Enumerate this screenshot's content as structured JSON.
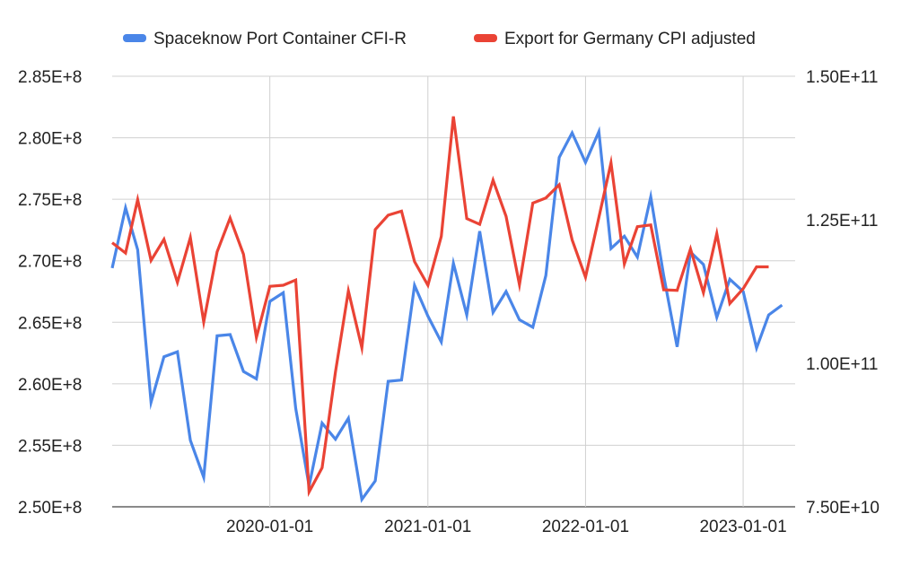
{
  "chart_data": {
    "type": "line",
    "title": "",
    "xlabel": "",
    "ylabel_left": "",
    "ylabel_right": "",
    "x_tick_labels": [
      "2020-01-01",
      "2021-01-01",
      "2022-01-01",
      "2023-01-01"
    ],
    "x_tick_dates": [
      "2020-01-01",
      "2021-01-01",
      "2022-01-01",
      "2023-01-01"
    ],
    "x_range": [
      "2019-01-01",
      "2023-02-01"
    ],
    "ylim_left": [
      250000000,
      285000000
    ],
    "ylim_right": [
      75000000000,
      150000000000
    ],
    "y_left_ticks": [
      {
        "value": 250000000,
        "label": "2.50E+8"
      },
      {
        "value": 255000000,
        "label": "2.55E+8"
      },
      {
        "value": 260000000,
        "label": "2.60E+8"
      },
      {
        "value": 265000000,
        "label": "2.65E+8"
      },
      {
        "value": 270000000,
        "label": "2.70E+8"
      },
      {
        "value": 275000000,
        "label": "2.75E+8"
      },
      {
        "value": 280000000,
        "label": "2.80E+8"
      },
      {
        "value": 285000000,
        "label": "2.85E+8"
      }
    ],
    "y_right_ticks": [
      {
        "value": 75000000000,
        "label": "7.50E+10"
      },
      {
        "value": 100000000000,
        "label": "1.00E+11"
      },
      {
        "value": 125000000000,
        "label": "1.25E+11"
      },
      {
        "value": 150000000000,
        "label": "1.50E+11"
      }
    ],
    "grid": true,
    "legend_position": "top",
    "series": [
      {
        "name": "Spaceknow Port Container CFI-R",
        "color": "#4a86e8",
        "axis": "left",
        "x": [
          "2019-01-01",
          "2019-02-01",
          "2019-03-01",
          "2019-04-01",
          "2019-05-01",
          "2019-06-01",
          "2019-07-01",
          "2019-08-01",
          "2019-09-01",
          "2019-10-01",
          "2019-11-01",
          "2019-12-01",
          "2020-01-01",
          "2020-02-01",
          "2020-03-01",
          "2020-04-01",
          "2020-05-01",
          "2020-06-01",
          "2020-07-01",
          "2020-08-01",
          "2020-09-01",
          "2020-10-01",
          "2020-11-01",
          "2020-12-01",
          "2021-01-01",
          "2021-02-01",
          "2021-03-01",
          "2021-04-01",
          "2021-05-01",
          "2021-06-01",
          "2021-07-01",
          "2021-08-01",
          "2021-09-01",
          "2021-10-01",
          "2021-11-01",
          "2021-12-01",
          "2022-01-01",
          "2022-02-01",
          "2022-03-01",
          "2022-04-01",
          "2022-05-01",
          "2022-06-01",
          "2022-07-01",
          "2022-08-01",
          "2022-09-01",
          "2022-10-01",
          "2022-11-01",
          "2022-12-01",
          "2023-01-01",
          "2023-02-01",
          "2023-03-01",
          "2023-04-01"
        ],
        "values": [
          269400000,
          274300000,
          270900000,
          258500000,
          262200000,
          262600000,
          255400000,
          252400000,
          263900000,
          264000000,
          261000000,
          260400000,
          266700000,
          267400000,
          258000000,
          251700000,
          256800000,
          255500000,
          257200000,
          250600000,
          252100000,
          260200000,
          260300000,
          268000000,
          265500000,
          263400000,
          269800000,
          265600000,
          272400000,
          265800000,
          267500000,
          265200000,
          264600000,
          268800000,
          278400000,
          280400000,
          278000000,
          280500000,
          271000000,
          272000000,
          270300000,
          275200000,
          268800000,
          263000000,
          270700000,
          269700000,
          265400000,
          268500000,
          267500000,
          262900000,
          265600000,
          266400000
        ]
      },
      {
        "name": "Export for Germany CPI adjusted",
        "color": "#ea4335",
        "axis": "right",
        "x": [
          "2019-01-01",
          "2019-02-01",
          "2019-03-01",
          "2019-04-01",
          "2019-05-01",
          "2019-06-01",
          "2019-07-01",
          "2019-08-01",
          "2019-09-01",
          "2019-10-01",
          "2019-11-01",
          "2019-12-01",
          "2020-01-01",
          "2020-02-01",
          "2020-03-01",
          "2020-04-01",
          "2020-05-01",
          "2020-06-01",
          "2020-07-01",
          "2020-08-01",
          "2020-09-01",
          "2020-10-01",
          "2020-11-01",
          "2020-12-01",
          "2021-01-01",
          "2021-02-01",
          "2021-03-01",
          "2021-04-01",
          "2021-05-01",
          "2021-06-01",
          "2021-07-01",
          "2021-08-01",
          "2021-09-01",
          "2021-10-01",
          "2021-11-01",
          "2021-12-01",
          "2022-01-01",
          "2022-02-01",
          "2022-03-01",
          "2022-04-01",
          "2022-05-01",
          "2022-06-01",
          "2022-07-01",
          "2022-08-01",
          "2022-09-01",
          "2022-10-01",
          "2022-11-01",
          "2022-12-01",
          "2023-01-01",
          "2023-02-01",
          "2023-03-01"
        ],
        "values": [
          121000000000,
          119200000000,
          128500000000,
          117900000000,
          121600000000,
          114100000000,
          121900000000,
          107200000000,
          119400000000,
          125300000000,
          119000000000,
          104500000000,
          113400000000,
          113600000000,
          114500000000,
          77600000000,
          81800000000,
          98500000000,
          112600000000,
          102700000000,
          123300000000,
          125800000000,
          126500000000,
          117700000000,
          113600000000,
          122100000000,
          143000000000,
          125200000000,
          124200000000,
          131900000000,
          125600000000,
          113700000000,
          127900000000,
          128800000000,
          131100000000,
          121500000000,
          115000000000,
          125400000000,
          134900000000,
          117300000000,
          123800000000,
          124100000000,
          112800000000,
          112700000000,
          119900000000,
          112300000000,
          122600000000,
          110400000000,
          113000000000,
          116800000000,
          116800000000
        ]
      }
    ]
  }
}
